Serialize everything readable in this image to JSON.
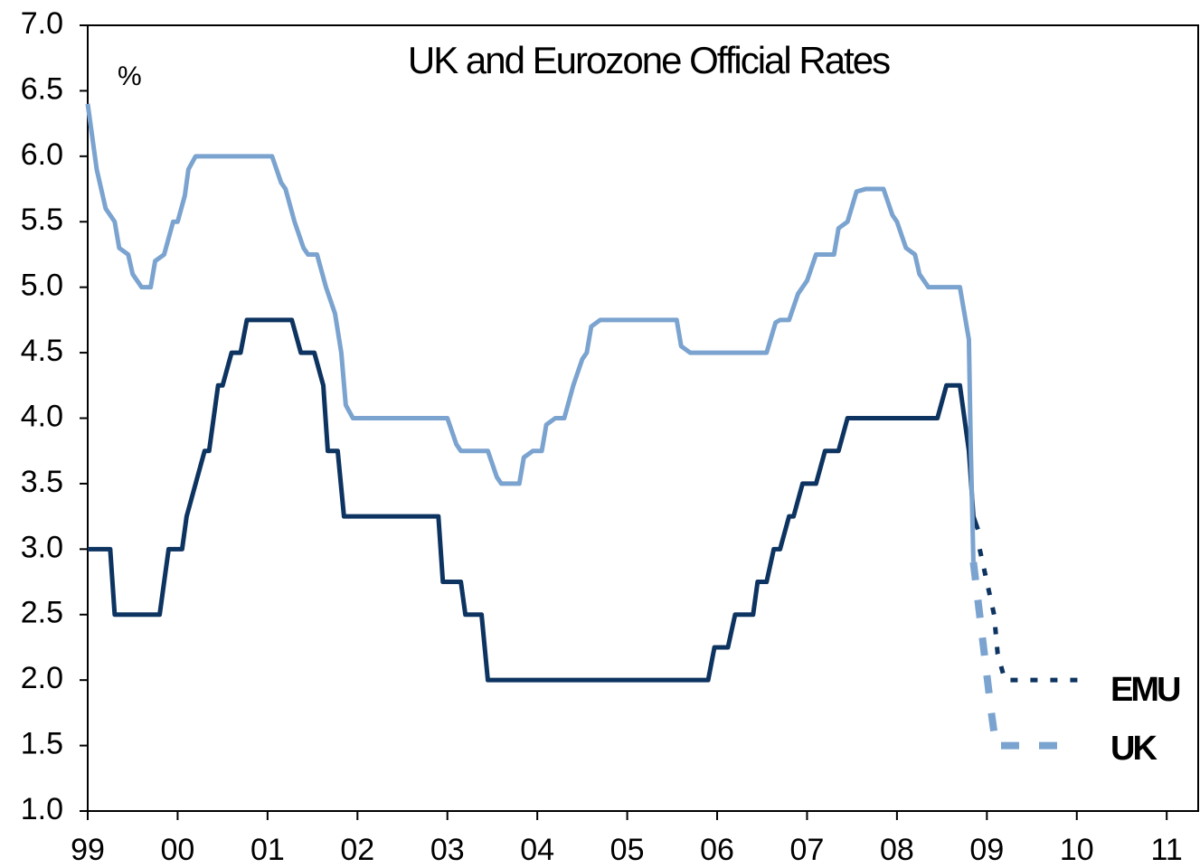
{
  "chart_data": {
    "type": "line",
    "title": "UK and Eurozone Official Rates",
    "y_label": "%",
    "xlim": [
      1999,
      2011.35
    ],
    "xticks": [
      {
        "value": 1999,
        "label": "99"
      },
      {
        "value": 2000,
        "label": "00"
      },
      {
        "value": 2001,
        "label": "01"
      },
      {
        "value": 2002,
        "label": "02"
      },
      {
        "value": 2003,
        "label": "03"
      },
      {
        "value": 2004,
        "label": "04"
      },
      {
        "value": 2005,
        "label": "05"
      },
      {
        "value": 2006,
        "label": "06"
      },
      {
        "value": 2007,
        "label": "07"
      },
      {
        "value": 2008,
        "label": "08"
      },
      {
        "value": 2009,
        "label": "09"
      },
      {
        "value": 2010,
        "label": "10"
      },
      {
        "value": 2011,
        "label": "11"
      }
    ],
    "ylim": [
      1,
      7
    ],
    "yticks": [
      {
        "value": 1,
        "label": "1.0"
      },
      {
        "value": 1.5,
        "label": "1.5"
      },
      {
        "value": 2,
        "label": "2.0"
      },
      {
        "value": 2.5,
        "label": "2.5"
      },
      {
        "value": 3,
        "label": "3.0"
      },
      {
        "value": 3.5,
        "label": "3.5"
      },
      {
        "value": 4,
        "label": "4.0"
      },
      {
        "value": 4.5,
        "label": "4.5"
      },
      {
        "value": 5,
        "label": "5.0"
      },
      {
        "value": 5.5,
        "label": "5.5"
      },
      {
        "value": 6,
        "label": "6.0"
      },
      {
        "value": 6.5,
        "label": "6.5"
      },
      {
        "value": 7,
        "label": "7.0"
      }
    ],
    "series": [
      {
        "name": "EMU",
        "color": "#0d3360",
        "x": [
          1999.0,
          1999.25,
          1999.3,
          1999.8,
          1999.9,
          2000.05,
          2000.1,
          2000.3,
          2000.35,
          2000.45,
          2000.5,
          2000.6,
          2000.7,
          2000.77,
          2001.27,
          2001.37,
          2001.52,
          2001.62,
          2001.67,
          2001.78,
          2001.85,
          2002.9,
          2002.95,
          2003.15,
          2003.2,
          2003.38,
          2003.45,
          2005.9,
          2005.97,
          2006.12,
          2006.2,
          2006.4,
          2006.45,
          2006.55,
          2006.63,
          2006.7,
          2006.8,
          2006.85,
          2006.95,
          2007.1,
          2007.2,
          2007.35,
          2007.45,
          2008.45,
          2008.55,
          2008.7,
          2008.8,
          2008.85,
          2008.9
        ],
        "values": [
          3.0,
          3.0,
          2.5,
          2.5,
          3.0,
          3.0,
          3.25,
          3.75,
          3.75,
          4.25,
          4.25,
          4.5,
          4.5,
          4.75,
          4.75,
          4.5,
          4.5,
          4.25,
          3.75,
          3.75,
          3.25,
          3.25,
          2.75,
          2.75,
          2.5,
          2.5,
          2.0,
          2.0,
          2.25,
          2.25,
          2.5,
          2.5,
          2.75,
          2.75,
          3.0,
          3.0,
          3.25,
          3.25,
          3.5,
          3.5,
          3.75,
          3.75,
          4.0,
          4.0,
          4.25,
          4.25,
          3.75,
          3.25,
          3.15
        ],
        "forecast": {
          "x": [
            2008.92,
            2009.0,
            2009.08,
            2009.12,
            2009.2,
            2010.05
          ],
          "values": [
            3.0,
            2.75,
            2.5,
            2.2,
            2.0,
            2.0
          ]
        }
      },
      {
        "name": "UK",
        "color": "#7ba3cf",
        "x": [
          1999.0,
          1999.1,
          1999.2,
          1999.3,
          1999.35,
          1999.45,
          1999.5,
          1999.6,
          1999.7,
          1999.75,
          1999.85,
          1999.95,
          2000.0,
          2000.08,
          2000.12,
          2000.2,
          2001.05,
          2001.15,
          2001.2,
          2001.3,
          2001.4,
          2001.45,
          2001.55,
          2001.65,
          2001.75,
          2001.82,
          2001.87,
          2001.95,
          2003.0,
          2003.1,
          2003.15,
          2003.45,
          2003.55,
          2003.6,
          2003.8,
          2003.85,
          2003.95,
          2004.05,
          2004.1,
          2004.2,
          2004.3,
          2004.4,
          2004.5,
          2004.55,
          2004.6,
          2004.7,
          2005.55,
          2005.6,
          2005.7,
          2006.55,
          2006.65,
          2006.7,
          2006.8,
          2006.9,
          2007.0,
          2007.1,
          2007.3,
          2007.35,
          2007.45,
          2007.55,
          2007.65,
          2007.85,
          2007.95,
          2008.0,
          2008.1,
          2008.2,
          2008.25,
          2008.35,
          2008.7,
          2008.8,
          2008.82,
          2008.85
        ],
        "values": [
          6.4,
          5.9,
          5.6,
          5.5,
          5.3,
          5.25,
          5.1,
          5.0,
          5.0,
          5.2,
          5.25,
          5.5,
          5.5,
          5.7,
          5.9,
          6.0,
          6.0,
          5.8,
          5.75,
          5.5,
          5.3,
          5.25,
          5.25,
          5.0,
          4.8,
          4.5,
          4.1,
          4.0,
          4.0,
          3.8,
          3.75,
          3.75,
          3.55,
          3.5,
          3.5,
          3.7,
          3.75,
          3.75,
          3.95,
          4.0,
          4.0,
          4.25,
          4.45,
          4.5,
          4.7,
          4.75,
          4.75,
          4.55,
          4.5,
          4.5,
          4.73,
          4.75,
          4.75,
          4.95,
          5.05,
          5.25,
          5.25,
          5.45,
          5.5,
          5.73,
          5.75,
          5.75,
          5.55,
          5.5,
          5.3,
          5.25,
          5.1,
          5.0,
          5.0,
          4.6,
          3.8,
          2.9
        ],
        "forecast": {
          "x": [
            2008.85,
            2009.05,
            2009.1,
            2009.85
          ],
          "values": [
            2.9,
            1.75,
            1.5,
            1.5
          ]
        }
      }
    ]
  }
}
